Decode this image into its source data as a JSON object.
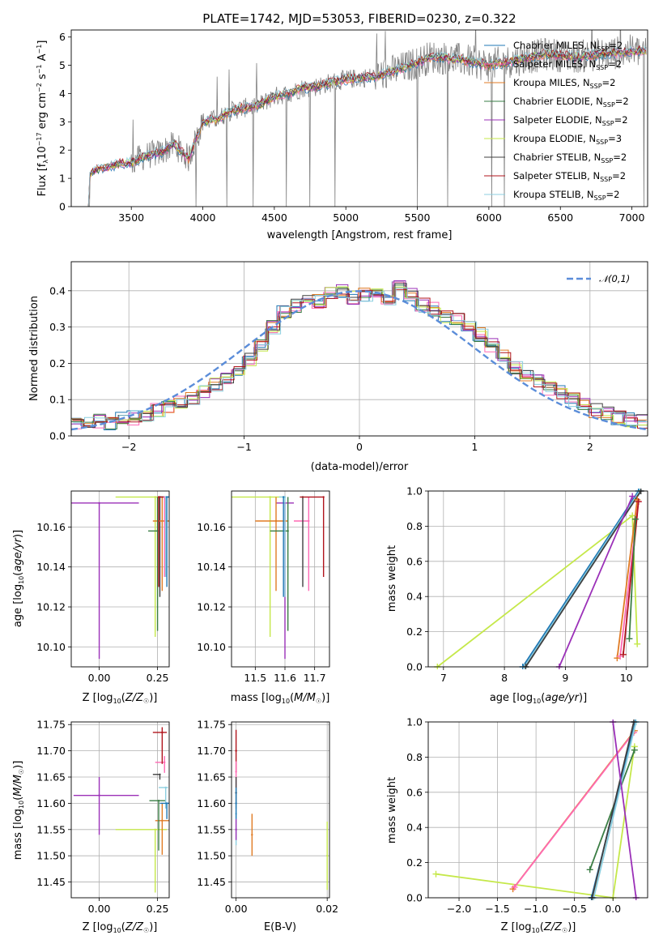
{
  "chart_data": [
    {
      "id": "spectrum",
      "type": "line",
      "title": "PLATE=1742, MJD=53053, FIBERID=0230, z=0.322",
      "xlabel": "wavelength [Angstrom, rest frame]",
      "ylabel": "Flux [f_λ 10^-17 erg cm^-2 s^-1 A^-1]",
      "xlim": [
        3080,
        7110
      ],
      "ylim": [
        0,
        6.25
      ],
      "xticks": [
        3500,
        4000,
        4500,
        5000,
        5500,
        6000,
        6500,
        7000
      ],
      "yticks": [
        0,
        1,
        2,
        3,
        4,
        5,
        6
      ],
      "legend_position": "upper right",
      "data_color": "#808080",
      "series": [
        {
          "name": "Chabrier MILES, N_SSP=2",
          "color": "#1f77b4"
        },
        {
          "name": "Salpeter MILES, N_SSP=2",
          "color": "#ff69b4"
        },
        {
          "name": "Kroupa MILES, N_SSP=2",
          "color": "#e07b24"
        },
        {
          "name": "Chabrier ELODIE, N_SSP=2",
          "color": "#3a7d44"
        },
        {
          "name": "Salpeter ELODIE, N_SSP=2",
          "color": "#9b30b8"
        },
        {
          "name": "Kroupa ELODIE, N_SSP=3",
          "color": "#c5e84a"
        },
        {
          "name": "Chabrier STELIB, N_SSP=2",
          "color": "#404040"
        },
        {
          "name": "Salpeter STELIB, N_SSP=2",
          "color": "#b0141c"
        },
        {
          "name": "Kroupa STELIB, N_SSP=2",
          "color": "#8ccfe0"
        }
      ],
      "continuum": {
        "x": [
          3200,
          3250,
          3300,
          3400,
          3500,
          3600,
          3700,
          3800,
          3900,
          4000,
          4100,
          4200,
          4300,
          4400,
          4500,
          4600,
          4700,
          4800,
          4900,
          5000,
          5200,
          5400,
          5600,
          5800,
          6000,
          6200,
          6400,
          6600,
          6800,
          7000
        ],
        "y": [
          1.1,
          1.3,
          1.35,
          1.5,
          1.55,
          1.8,
          1.9,
          2.2,
          1.7,
          3.0,
          3.1,
          3.4,
          3.5,
          3.6,
          3.9,
          4.0,
          4.2,
          4.25,
          4.4,
          4.5,
          4.6,
          4.9,
          5.3,
          5.2,
          5.0,
          5.2,
          5.4,
          5.3,
          5.4,
          5.5
        ]
      }
    },
    {
      "id": "residuals",
      "type": "line",
      "xlabel": "(data-model)/error",
      "ylabel": "Normed distribution",
      "xlim": [
        -2.5,
        2.5
      ],
      "ylim": [
        0,
        0.48
      ],
      "xticks": [
        -2,
        -1,
        0,
        1,
        2
      ],
      "yticks": [
        0.0,
        0.1,
        0.2,
        0.3,
        0.4
      ],
      "legend": "𝒩(0,1)",
      "legend_position": "upper right",
      "normal_color": "#5b8dd9",
      "hist_bin_centers": [
        -2.45,
        -2.35,
        -2.25,
        -2.15,
        -2.05,
        -1.95,
        -1.85,
        -1.75,
        -1.65,
        -1.55,
        -1.45,
        -1.35,
        -1.25,
        -1.15,
        -1.05,
        -0.95,
        -0.85,
        -0.75,
        -0.65,
        -0.55,
        -0.45,
        -0.35,
        -0.25,
        -0.15,
        -0.05,
        0.05,
        0.15,
        0.25,
        0.35,
        0.45,
        0.55,
        0.65,
        0.75,
        0.85,
        0.95,
        1.05,
        1.15,
        1.25,
        1.35,
        1.45,
        1.55,
        1.65,
        1.75,
        1.85,
        1.95,
        2.05,
        2.15,
        2.25,
        2.35,
        2.45
      ],
      "hist_values": [
        0.03,
        0.035,
        0.04,
        0.035,
        0.045,
        0.05,
        0.06,
        0.07,
        0.08,
        0.09,
        0.1,
        0.12,
        0.14,
        0.16,
        0.18,
        0.21,
        0.25,
        0.3,
        0.34,
        0.36,
        0.38,
        0.37,
        0.39,
        0.4,
        0.38,
        0.39,
        0.4,
        0.37,
        0.41,
        0.39,
        0.36,
        0.35,
        0.33,
        0.32,
        0.3,
        0.28,
        0.25,
        0.22,
        0.19,
        0.17,
        0.15,
        0.13,
        0.12,
        0.1,
        0.09,
        0.07,
        0.06,
        0.05,
        0.045,
        0.04
      ]
    },
    {
      "id": "age-vs-Z",
      "type": "scatter",
      "xlabel": "Z [log10(Z/Z☉)]",
      "ylabel": "age  [log10(age/yr)]",
      "xlim": [
        -0.12,
        0.3
      ],
      "ylim": [
        10.09,
        10.178
      ],
      "xticks": [
        0.0,
        0.25
      ],
      "yticks": [
        10.1,
        10.12,
        10.14,
        10.16
      ],
      "points": [
        {
          "x": 0.0,
          "y": 10.172,
          "xerr": [
            0.12,
            0.17
          ],
          "yerr": [
            0.078,
            0.0
          ],
          "color": "#9b30b8"
        },
        {
          "x": 0.24,
          "y": 10.175,
          "xerr": [
            0.17,
            0.05
          ],
          "yerr": [
            0.07,
            0.0
          ],
          "color": "#c5e84a"
        },
        {
          "x": 0.26,
          "y": 10.175,
          "xerr": [
            0.0,
            0.04
          ],
          "yerr": [
            0.05,
            0.0
          ],
          "color": "#404040"
        },
        {
          "x": 0.27,
          "y": 10.163,
          "xerr": [
            0.04,
            0.03
          ],
          "yerr": [
            0.035,
            0.012
          ],
          "color": "#e07b24"
        },
        {
          "x": 0.25,
          "y": 10.158,
          "xerr": [
            0.04,
            0.0
          ],
          "yerr": [
            0.05,
            0.017
          ],
          "color": "#3a7d44"
        },
        {
          "x": 0.28,
          "y": 10.175,
          "xerr": [
            0.0,
            0.02
          ],
          "yerr": [
            0.04,
            0.0
          ],
          "color": "#ff69b4"
        },
        {
          "x": 0.285,
          "y": 10.175,
          "xerr": [
            0.0,
            0.015
          ],
          "yerr": [
            0.04,
            0.0
          ],
          "color": "#8ccfe0"
        },
        {
          "x": 0.29,
          "y": 10.175,
          "xerr": [
            0.0,
            0.01
          ],
          "yerr": [
            0.045,
            0.0
          ],
          "color": "#1f77b4"
        },
        {
          "x": 0.255,
          "y": 10.175,
          "xerr": [
            0.0,
            0.02
          ],
          "yerr": [
            0.045,
            0.0
          ],
          "color": "#b0141c"
        }
      ]
    },
    {
      "id": "age-vs-mass",
      "type": "scatter",
      "xlabel": "mass [log10(M/M☉)]",
      "ylabel": "",
      "xlim": [
        11.42,
        11.75
      ],
      "ylim": [
        10.09,
        10.178
      ],
      "xticks": [
        11.5,
        11.6,
        11.7
      ],
      "yticks": [
        10.1,
        10.12,
        10.14,
        10.16
      ],
      "points": [
        {
          "x": 11.55,
          "y": 10.175,
          "xerr": [
            0.13,
            0.05
          ],
          "yerr": [
            0.07,
            0.0
          ],
          "color": "#c5e84a"
        },
        {
          "x": 11.6,
          "y": 10.172,
          "xerr": [
            0.03,
            0.03
          ],
          "yerr": [
            0.078,
            0.0
          ],
          "color": "#9b30b8"
        },
        {
          "x": 11.57,
          "y": 10.163,
          "xerr": [
            0.07,
            0.04
          ],
          "yerr": [
            0.035,
            0.012
          ],
          "color": "#e07b24"
        },
        {
          "x": 11.68,
          "y": 10.163,
          "xerr": [
            0.05,
            0.0
          ],
          "yerr": [
            0.035,
            0.012
          ],
          "color": "#ff69b4"
        },
        {
          "x": 11.61,
          "y": 10.158,
          "xerr": [
            0.06,
            0.0
          ],
          "yerr": [
            0.05,
            0.017
          ],
          "color": "#3a7d44"
        },
        {
          "x": 11.66,
          "y": 10.175,
          "xerr": [
            0.0,
            0.0
          ],
          "yerr": [
            0.045,
            0.0
          ],
          "color": "#404040"
        },
        {
          "x": 11.73,
          "y": 10.175,
          "xerr": [
            0.08,
            0.0
          ],
          "yerr": [
            0.04,
            0.0
          ],
          "color": "#b0141c"
        },
        {
          "x": 11.6,
          "y": 10.175,
          "xerr": [
            0.02,
            0.0
          ],
          "yerr": [
            0.05,
            0.0
          ],
          "color": "#8ccfe0"
        },
        {
          "x": 11.595,
          "y": 10.175,
          "xerr": [
            0.0,
            0.0
          ],
          "yerr": [
            0.05,
            0.0
          ],
          "color": "#1f77b4"
        }
      ]
    },
    {
      "id": "mw-vs-age",
      "type": "line",
      "xlabel": "age  [log10(age/yr)]",
      "ylabel": "mass weight",
      "xlim": [
        6.75,
        10.35
      ],
      "ylim": [
        0,
        1.0
      ],
      "xticks": [
        7,
        8,
        9,
        10
      ],
      "yticks": [
        0.0,
        0.2,
        0.4,
        0.6,
        0.8,
        1.0
      ],
      "series": [
        {
          "color": "#c5e84a",
          "x": [
            6.9,
            10.1,
            10.18
          ],
          "y": [
            0.0,
            0.86,
            0.13
          ]
        },
        {
          "color": "#1f77b4",
          "x": [
            8.3,
            10.2
          ],
          "y": [
            0.0,
            1.0
          ]
        },
        {
          "color": "#8ccfe0",
          "x": [
            8.33,
            10.22
          ],
          "y": [
            0.0,
            1.0
          ]
        },
        {
          "color": "#404040",
          "x": [
            8.35,
            10.24
          ],
          "y": [
            0.0,
            1.0
          ]
        },
        {
          "color": "#9b30b8",
          "x": [
            8.9,
            10.1
          ],
          "y": [
            0.0,
            0.97
          ]
        },
        {
          "color": "#e07b24",
          "x": [
            9.85,
            10.18
          ],
          "y": [
            0.05,
            0.95
          ]
        },
        {
          "color": "#ff69b4",
          "x": [
            9.9,
            10.2
          ],
          "y": [
            0.06,
            0.94
          ]
        },
        {
          "color": "#b0141c",
          "x": [
            9.95,
            10.2
          ],
          "y": [
            0.07,
            0.94
          ]
        },
        {
          "color": "#3a7d44",
          "x": [
            10.05,
            10.15
          ],
          "y": [
            0.16,
            0.84
          ]
        }
      ]
    },
    {
      "id": "mass-vs-Z",
      "type": "scatter",
      "xlabel": "Z [log10(Z/Z☉)]",
      "ylabel": "mass [log10(M/M☉)]",
      "xlim": [
        -0.12,
        0.3
      ],
      "ylim": [
        11.42,
        11.755
      ],
      "xticks": [
        0.0,
        0.25
      ],
      "yticks": [
        11.45,
        11.5,
        11.55,
        11.6,
        11.65,
        11.7,
        11.75
      ],
      "points": [
        {
          "x": 0.0,
          "y": 11.615,
          "xerr": [
            0.11,
            0.17
          ],
          "yerr": [
            0.075,
            0.035
          ],
          "color": "#9b30b8"
        },
        {
          "x": 0.24,
          "y": 11.55,
          "xerr": [
            0.17,
            0.05
          ],
          "yerr": [
            0.12,
            0.0
          ],
          "color": "#c5e84a"
        },
        {
          "x": 0.27,
          "y": 11.567,
          "xerr": [
            0.03,
            0.03
          ],
          "yerr": [
            0.065,
            0.033
          ],
          "color": "#e07b24"
        },
        {
          "x": 0.28,
          "y": 11.678,
          "xerr": [
            0.04,
            0.0
          ],
          "yerr": [
            0.02,
            0.012
          ],
          "color": "#ff69b4"
        },
        {
          "x": 0.26,
          "y": 11.655,
          "xerr": [
            0.03,
            0.0
          ],
          "yerr": [
            0.01,
            0.0
          ],
          "color": "#404040"
        },
        {
          "x": 0.27,
          "y": 11.735,
          "xerr": [
            0.04,
            0.02
          ],
          "yerr": [
            0.06,
            0.01
          ],
          "color": "#b0141c"
        },
        {
          "x": 0.255,
          "y": 11.605,
          "xerr": [
            0.04,
            0.03
          ],
          "yerr": [
            0.095,
            0.0
          ],
          "color": "#3a7d44"
        },
        {
          "x": 0.285,
          "y": 11.63,
          "xerr": [
            0.03,
            0.01
          ],
          "yerr": [
            0.04,
            0.0
          ],
          "color": "#8ccfe0"
        },
        {
          "x": 0.29,
          "y": 11.6,
          "xerr": [
            0.03,
            0.01
          ],
          "yerr": [
            0.03,
            0.0
          ],
          "color": "#1f77b4"
        }
      ]
    },
    {
      "id": "mass-vs-EBV",
      "type": "scatter",
      "xlabel": "E(B-V)",
      "ylabel": "",
      "xlim": [
        -0.001,
        0.0205
      ],
      "ylim": [
        11.42,
        11.755
      ],
      "xticks": [
        0.0,
        0.02
      ],
      "yticks": [
        11.45,
        11.5,
        11.55,
        11.6,
        11.65,
        11.7,
        11.75
      ],
      "points": [
        {
          "x": 0.0,
          "y": 11.7,
          "yerr": [
            0.04,
            0.04
          ],
          "color": "#b0141c"
        },
        {
          "x": 0.0,
          "y": 11.66,
          "yerr": [
            0.03,
            0.02
          ],
          "color": "#ff69b4"
        },
        {
          "x": 0.0,
          "y": 11.62,
          "yerr": [
            0.03,
            0.03
          ],
          "color": "#404040"
        },
        {
          "x": 0.0,
          "y": 11.58,
          "yerr": [
            0.06,
            0.02
          ],
          "color": "#8ccfe0"
        },
        {
          "x": 0.0,
          "y": 11.55,
          "yerr": [
            0.02,
            0.02
          ],
          "color": "#9b30b8"
        },
        {
          "x": 0.0,
          "y": 11.6,
          "yerr": [
            0.03,
            0.03
          ],
          "color": "#1f77b4"
        },
        {
          "x": 0.0035,
          "y": 11.54,
          "yerr": [
            0.04,
            0.04
          ],
          "color": "#e07b24"
        },
        {
          "x": 0.02,
          "y": 11.5,
          "yerr": [
            0.065,
            0.065
          ],
          "color": "#c5e84a"
        }
      ]
    },
    {
      "id": "mw-vs-Z",
      "type": "line",
      "xlabel": "Z [log10(Z/Z☉)]",
      "ylabel": "mass weight",
      "xlim": [
        -2.4,
        0.45
      ],
      "ylim": [
        0,
        1.0
      ],
      "xticks": [
        -2.0,
        -1.5,
        -1.0,
        -0.5,
        0.0
      ],
      "yticks": [
        0.0,
        0.2,
        0.4,
        0.6,
        0.8,
        1.0
      ],
      "series": [
        {
          "color": "#c5e84a",
          "x": [
            -2.3,
            0.0,
            0.28
          ],
          "y": [
            0.135,
            0.0,
            0.86
          ]
        },
        {
          "color": "#e07b24",
          "x": [
            -1.3,
            0.28
          ],
          "y": [
            0.05,
            0.95
          ]
        },
        {
          "color": "#ff69b4",
          "x": [
            -1.28,
            0.27
          ],
          "y": [
            0.06,
            0.94
          ]
        },
        {
          "color": "#3a7d44",
          "x": [
            -0.3,
            0.28
          ],
          "y": [
            0.16,
            0.84
          ]
        },
        {
          "color": "#1f77b4",
          "x": [
            -0.28,
            0.29
          ],
          "y": [
            0.0,
            1.0
          ]
        },
        {
          "color": "#8ccfe0",
          "x": [
            -0.25,
            0.3
          ],
          "y": [
            0.0,
            1.0
          ]
        },
        {
          "color": "#404040",
          "x": [
            -0.27,
            0.27
          ],
          "y": [
            0.0,
            1.0
          ]
        },
        {
          "color": "#9b30b8",
          "x": [
            0.0,
            0.3
          ],
          "y": [
            1.0,
            0.0
          ]
        }
      ]
    }
  ]
}
